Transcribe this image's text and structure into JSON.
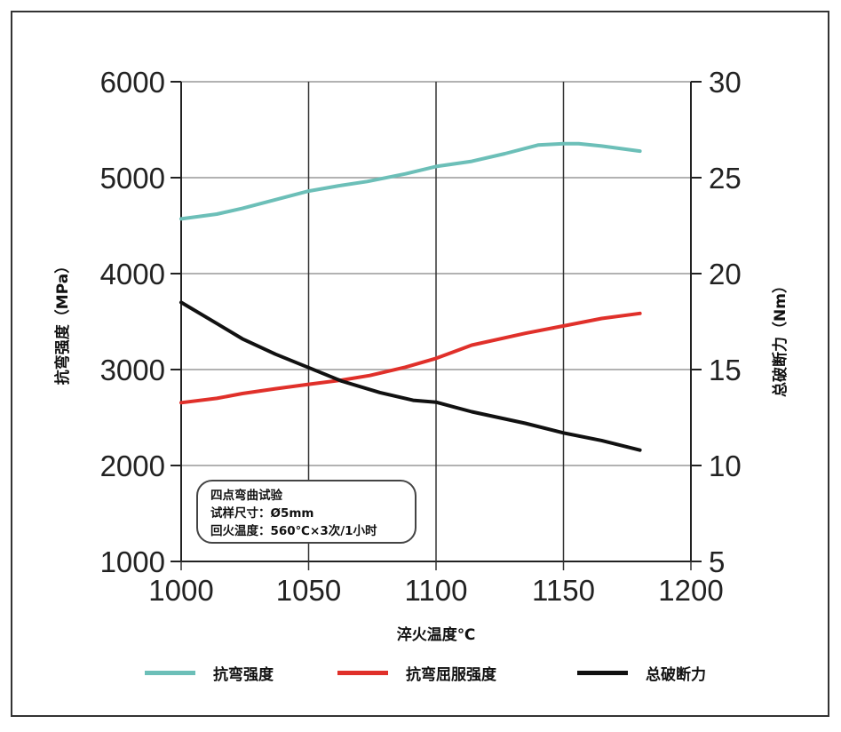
{
  "chart_data": {
    "type": "line",
    "xlabel": "淬火温度℃",
    "ylabel_left": "抗弯强度（MPa）",
    "ylabel_right": "总破断力（Nm）",
    "xlim": [
      1000,
      1200
    ],
    "ylim_left": [
      1000,
      6000
    ],
    "ylim_right": [
      5,
      30
    ],
    "x_ticks": [
      "1000",
      "1050",
      "1100",
      "1150",
      "1200"
    ],
    "y_left_ticks": [
      "1000",
      "2000",
      "3000",
      "4000",
      "5000",
      "6000"
    ],
    "y_right_ticks": [
      "5",
      "10",
      "15",
      "20",
      "25",
      "30"
    ],
    "grid": true,
    "legend_position": "bottom",
    "annotation": [
      "四点弯曲试验",
      "试样尺寸：Ø5mm",
      "回火温度：560℃×3次/1小时"
    ],
    "series": [
      {
        "name": "抗弯强度",
        "axis": "left",
        "color": "#6cbfb8",
        "x": [
          1000,
          1014,
          1024,
          1037,
          1050,
          1063,
          1073,
          1088,
          1100,
          1114,
          1127,
          1140,
          1150,
          1156,
          1165,
          1180
        ],
        "y": [
          4570,
          4620,
          4680,
          4770,
          4860,
          4920,
          4960,
          5040,
          5117,
          5170,
          5250,
          5340,
          5355,
          5355,
          5330,
          5277
        ]
      },
      {
        "name": "抗弯屈服强度",
        "axis": "left",
        "color": "#e0302a",
        "x": [
          1000,
          1014,
          1024,
          1037,
          1050,
          1063,
          1074,
          1088,
          1100,
          1114,
          1135,
          1150,
          1165,
          1180
        ],
        "y": [
          2655,
          2700,
          2750,
          2800,
          2846,
          2890,
          2938,
          3025,
          3117,
          3255,
          3378,
          3455,
          3532,
          3585
        ]
      },
      {
        "name": "总破断力",
        "axis": "right",
        "color": "#111111",
        "x": [
          1000,
          1014,
          1024,
          1037,
          1050,
          1063,
          1078,
          1091,
          1100,
          1114,
          1135,
          1150,
          1165,
          1180
        ],
        "y": [
          18.5,
          17.4,
          16.6,
          15.8,
          15.1,
          14.4,
          13.8,
          13.4,
          13.3,
          12.8,
          12.2,
          11.7,
          11.3,
          10.8
        ]
      }
    ]
  }
}
